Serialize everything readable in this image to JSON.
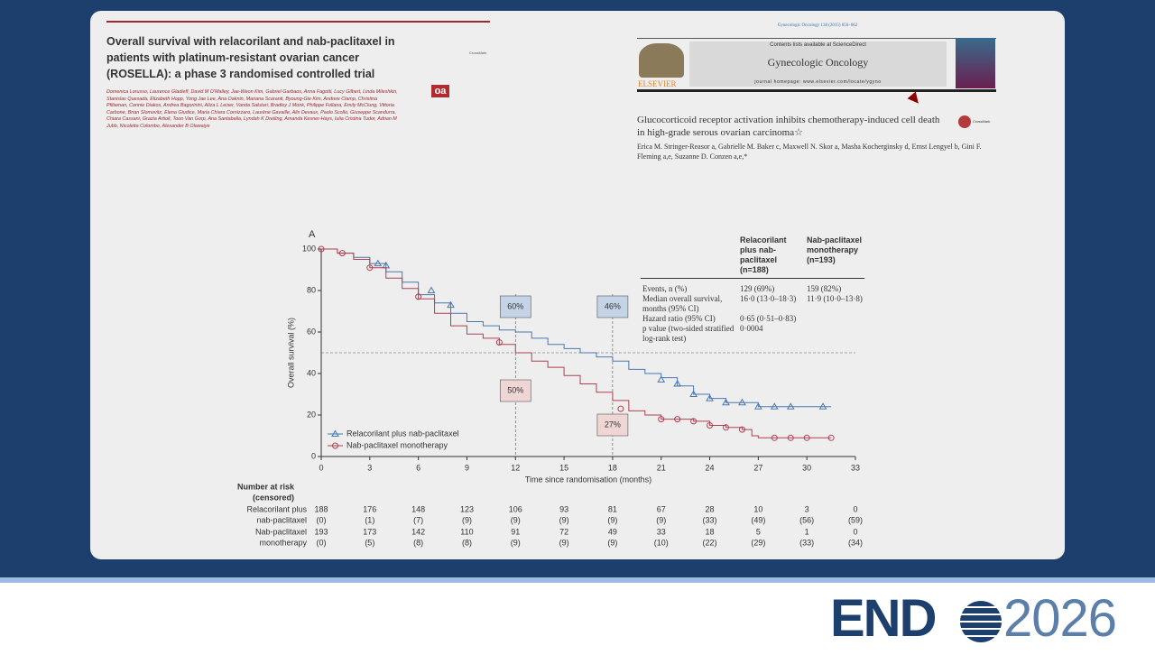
{
  "paper_left": {
    "title": "Overall survival with relacorilant and nab-paclitaxel in patients with platinum-resistant ovarian cancer (ROSELLA): a phase 3 randomised controlled trial",
    "authors": "Domenica Lorusso, Laurence Gladieff, David M O'Malley, Jae-Weon Kim, Gabriel Garbaos, Anna Fagotti, Lucy Gilbert, Linda Mileshkin, Stanislav Quesada, Elizabeth Hopp, Yong Jae Lee, Ana Oaknin, Mariana Scaranti, Byoung-Gie Kim, Andrew Clamp, Christina Pfiliaman, Connie Diakos, Andrea Bagorinini, Aliza L Leiser, Vanda Salutari, Bradley J Monk, Philippe Follana, Emily McClung, Vittoria Carbone, Brian Slomovitz, Elena Giudice, Maria Chiara Cornizzaro, Laurène Gavaille, Alix Devaux, Paolo Scollo, Giuseppe Scandurra, Chiara Cassani, Grazia Artioli, Toon Van Gorp, Ana Santaballa, Lyndah K Dreiling, Amanda Kesner-Hays, Iulia Cristina Tudor, Adrian M Jubb, Nicoletta Colombo, Alexander B Olawaiye",
    "badge": "oa",
    "crossmark": "CrossMark"
  },
  "paper_right": {
    "citation": "Gynecologic Oncology 138 (2015) 656–662",
    "contents": "Contents lists available at ScienceDirect",
    "journal": "Gynecologic Oncology",
    "homepage": "journal homepage: www.elsevier.com/locate/ygyno",
    "publisher": "ELSEVIER",
    "title": "Glucocorticoid receptor activation inhibits chemotherapy-induced cell death in high-grade serous ovarian carcinoma☆",
    "authors": "Erica M. Stringer-Reasor a, Gabrielle M. Baker c, Maxwell N. Skor a, Masha Kocherginsky d, Ernst Lengyel b, Gini F. Fleming a,e, Suzanne D. Conzen a,e,*",
    "crossmark": "CrossMark"
  },
  "chart_data": {
    "type": "line",
    "step": true,
    "panel": "A",
    "x_label": "Time since randomisation (months)",
    "y_label": "Overall survival (%)",
    "xlim": [
      0,
      33
    ],
    "ylim": [
      0,
      100
    ],
    "xticks": [
      0,
      3,
      6,
      9,
      12,
      15,
      18,
      21,
      24,
      27,
      30,
      33
    ],
    "yticks": [
      0,
      20,
      40,
      60,
      80,
      100
    ],
    "hline": 50,
    "vlines": [
      12,
      18
    ],
    "annotations": [
      {
        "text": "60%",
        "color": "#c5d3e6",
        "edge": "#4a78b0"
      },
      {
        "text": "46%",
        "color": "#c5d3e6",
        "edge": "#4a78b0"
      },
      {
        "text": "50%",
        "color": "#f0d5d5",
        "edge": "#b04050"
      },
      {
        "text": "27%",
        "color": "#f0d5d5",
        "edge": "#b04050"
      }
    ],
    "series": [
      {
        "name": "Relacorilant plus nab-paclitaxel",
        "color": "#4a78b0",
        "marker": "triangle",
        "x": [
          0,
          1,
          2,
          3,
          4,
          5,
          6,
          7,
          8,
          9,
          10,
          11,
          12,
          13,
          14,
          15,
          16,
          17,
          18,
          19,
          20,
          21,
          22,
          23,
          24,
          25,
          26,
          27,
          31.5
        ],
        "values": [
          100,
          98,
          96,
          93,
          89,
          84,
          78,
          74,
          69,
          65,
          63,
          61,
          60,
          57,
          54,
          52,
          50,
          48,
          46,
          42,
          40,
          38,
          34,
          30,
          28,
          26,
          26,
          24,
          24
        ],
        "censored": {
          "x": [
            3.5,
            4,
            6.8,
            8,
            21,
            22,
            23,
            24,
            25,
            26,
            27,
            28,
            29,
            31
          ],
          "values": [
            93,
            92,
            80,
            73,
            37,
            35,
            30,
            28,
            26,
            26,
            24,
            24,
            24,
            24
          ]
        }
      },
      {
        "name": "Nab-paclitaxel monotherapy",
        "color": "#b04050",
        "marker": "circle",
        "x": [
          0,
          1,
          2,
          3,
          4,
          5,
          6,
          7,
          8,
          9,
          10,
          11,
          12,
          13,
          14,
          15,
          16,
          17,
          18,
          19,
          20,
          21,
          22,
          23,
          24,
          25,
          26,
          26.6,
          27,
          31.5
        ],
        "values": [
          100,
          98,
          95,
          91,
          86,
          81,
          76,
          69,
          63,
          59,
          57,
          54,
          50,
          46,
          43,
          39,
          35,
          31,
          27,
          22,
          20,
          18,
          18,
          17,
          15,
          14,
          13,
          10,
          9,
          9
        ],
        "censored": {
          "x": [
            0,
            1.3,
            3,
            6,
            11,
            18.5,
            21,
            22,
            23,
            24,
            25,
            26,
            28,
            29,
            30,
            31.5
          ],
          "values": [
            100,
            98,
            91,
            77,
            55,
            23,
            18,
            18,
            17,
            15,
            14,
            13,
            9,
            9,
            9,
            9
          ]
        }
      }
    ],
    "stats_table": {
      "headers": [
        "Relacorilant plus nab-paclitaxel (n=188)",
        "Nab-paclitaxel monotherapy (n=193)"
      ],
      "rows": [
        [
          "Events, n (%)",
          "129 (69%)",
          "159 (82%)"
        ],
        [
          "Median overall survival, months (95% CI)",
          "16·0 (13·0–18·3)",
          "11·9 (10·0–13·8)"
        ],
        [
          "Hazard ratio (95% CI)",
          "0·65 (0·51–0·83)"
        ],
        [
          "p value (two-sided stratified log-rank test)",
          "0·0004"
        ]
      ]
    },
    "risk_table": {
      "title": [
        "Number at risk",
        "(censored)"
      ],
      "groups": [
        {
          "label": [
            "Relacorilant plus",
            "nab-paclitaxel"
          ],
          "at_risk": [
            188,
            176,
            148,
            123,
            106,
            93,
            81,
            67,
            28,
            10,
            3,
            0
          ],
          "censored": [
            "(0)",
            "(1)",
            "(7)",
            "(9)",
            "(9)",
            "(9)",
            "(9)",
            "(9)",
            "(33)",
            "(49)",
            "(56)",
            "(59)"
          ]
        },
        {
          "label": [
            "Nab-paclitaxel",
            "monotherapy"
          ],
          "at_risk": [
            193,
            173,
            142,
            110,
            91,
            72,
            49,
            33,
            18,
            5,
            1,
            0
          ],
          "censored": [
            "(0)",
            "(5)",
            "(8)",
            "(8)",
            "(9)",
            "(9)",
            "(9)",
            "(10)",
            "(22)",
            "(29)",
            "(33)",
            "(34)"
          ]
        }
      ]
    }
  },
  "logo": {
    "left": "END",
    "right": "2026"
  }
}
